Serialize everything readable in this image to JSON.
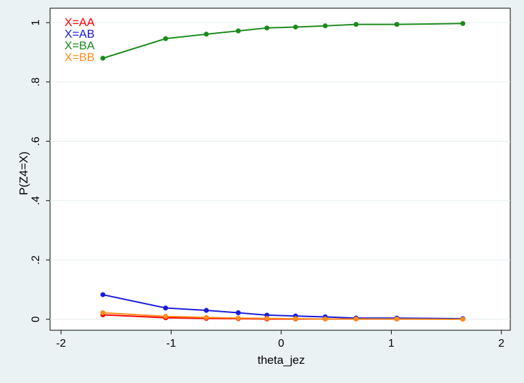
{
  "chart_data": {
    "type": "line",
    "title": "",
    "xlabel": "theta_jez",
    "ylabel": "P(Z4=X)",
    "xlim": [
      -2,
      2
    ],
    "ylim": [
      0,
      1
    ],
    "xticks": [
      -2,
      -1,
      0,
      1,
      2
    ],
    "xtick_labels": [
      "-2",
      "-1",
      "0",
      "1",
      "2"
    ],
    "yticks": [
      0,
      0.2,
      0.4,
      0.6,
      0.8,
      1
    ],
    "ytick_labels": [
      "0",
      ".2",
      ".4",
      ".6",
      ".8",
      "1"
    ],
    "grid": true,
    "legend_position": "top-left",
    "x": [
      -1.62,
      -1.05,
      -0.68,
      -0.39,
      -0.13,
      0.13,
      0.4,
      0.68,
      1.05,
      1.65
    ],
    "series": [
      {
        "name": "X=AA",
        "color": "#ff0000",
        "values": [
          0.015,
          0.005,
          0.003,
          0.002,
          0.001,
          0.001,
          0.001,
          0.001,
          0.001,
          0.001
        ]
      },
      {
        "name": "X=AB",
        "color": "#1a1adb",
        "values": [
          0.083,
          0.038,
          0.03,
          0.022,
          0.014,
          0.011,
          0.008,
          0.004,
          0.004,
          0.002
        ]
      },
      {
        "name": "X=BA",
        "color": "#1a8a1a",
        "values": [
          0.88,
          0.946,
          0.961,
          0.972,
          0.982,
          0.985,
          0.989,
          0.994,
          0.994,
          0.997
        ]
      },
      {
        "name": "X=BB",
        "color": "#ff8c1a",
        "values": [
          0.022,
          0.01,
          0.006,
          0.004,
          0.003,
          0.002,
          0.001,
          0.001,
          0.001,
          0.0
        ]
      }
    ]
  }
}
